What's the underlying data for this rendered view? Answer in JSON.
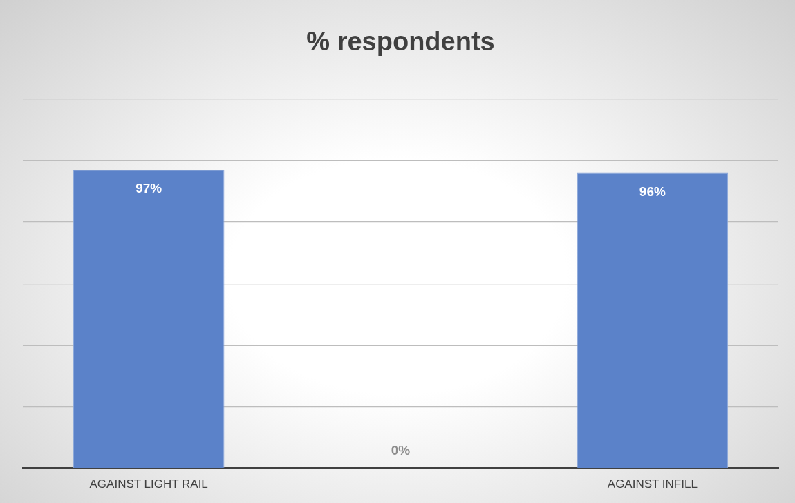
{
  "chart_data": {
    "type": "bar",
    "title": "% respondents",
    "categories": [
      "AGAINST LIGHT RAIL",
      null,
      "AGAINST INFILL"
    ],
    "values": [
      97,
      0,
      96
    ],
    "value_labels": [
      "97%",
      "0%",
      "96%"
    ],
    "color": "#5b82c9",
    "ylim": [
      0,
      120
    ],
    "yticks": [
      {
        "value": 0,
        "label": null
      },
      {
        "value": 20,
        "label": null
      },
      {
        "value": 40,
        "label": null
      },
      {
        "value": 60,
        "label": null
      },
      {
        "value": 80,
        "label": null
      },
      {
        "value": 100,
        "label": null
      },
      {
        "value": 120,
        "label": null
      }
    ],
    "grid": "y",
    "tick_labels": "x",
    "legend": false
  }
}
